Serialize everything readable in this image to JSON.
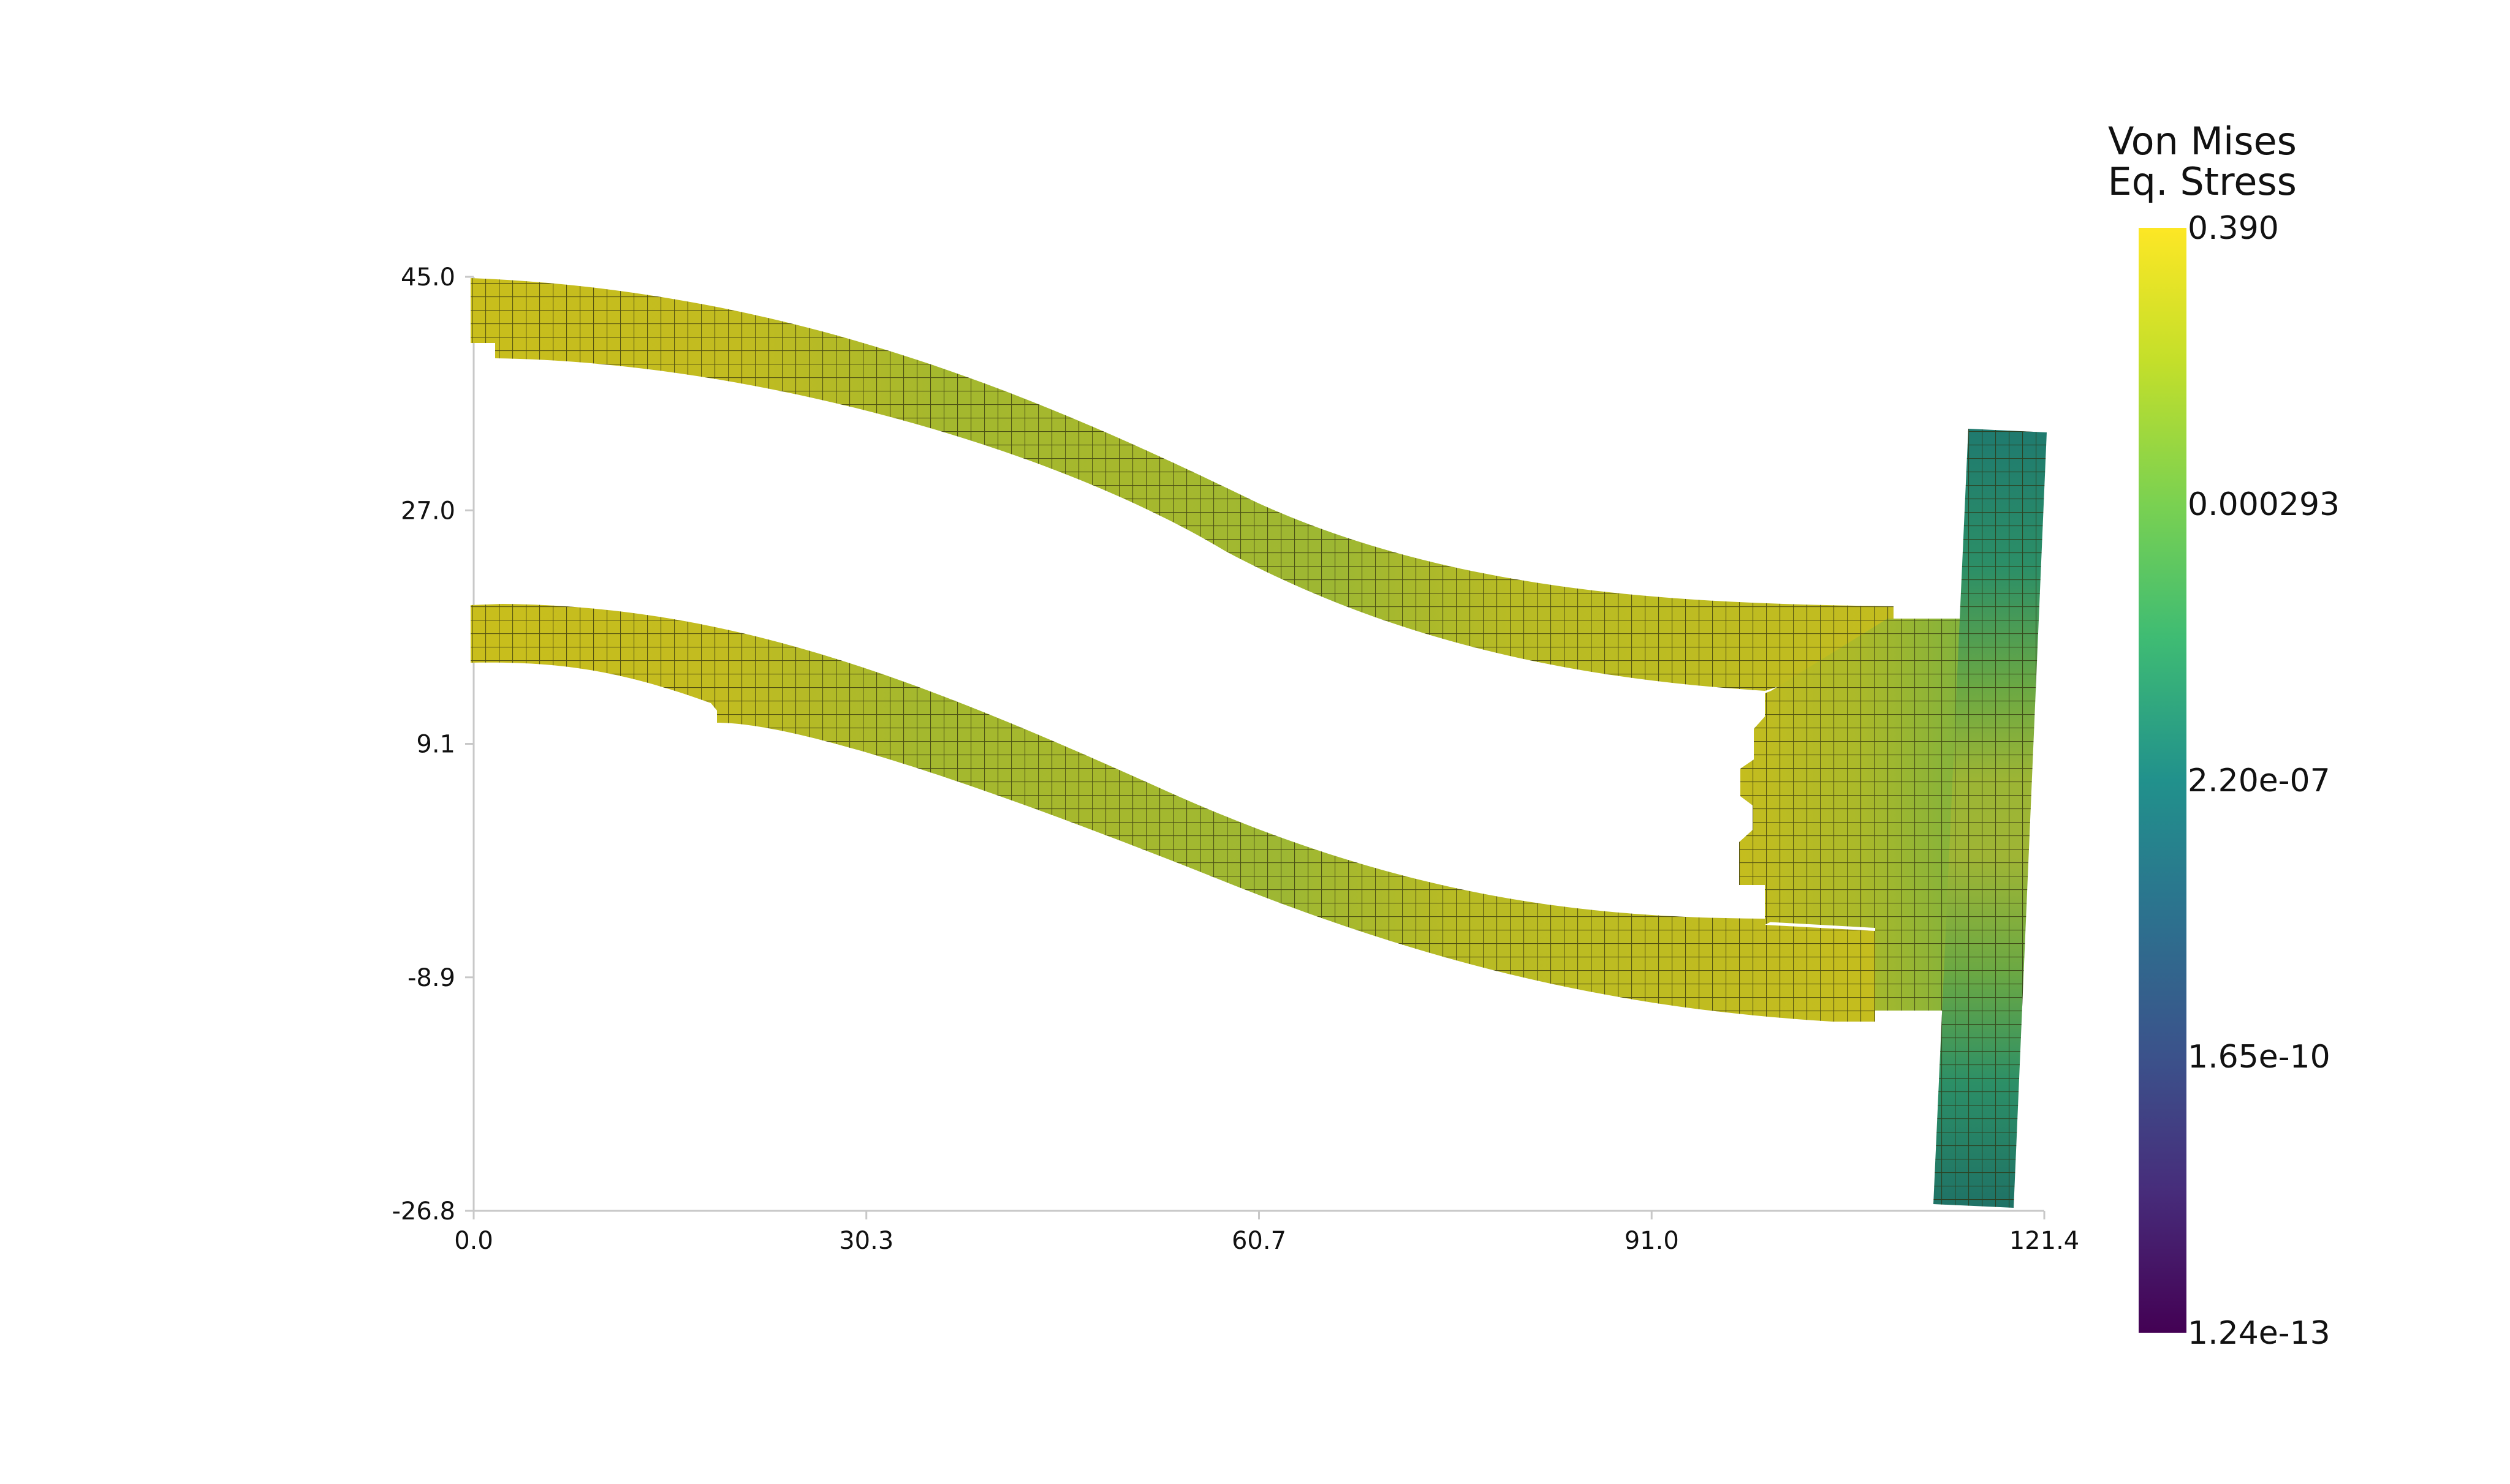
{
  "chart_data": {
    "type": "heatmap",
    "description_free": true,
    "x_ticks": [
      "0.0",
      "30.3",
      "60.7",
      "91.0",
      "121.4"
    ],
    "y_ticks": [
      "45.0",
      "27.0",
      "9.1",
      "-8.9",
      "-26.8"
    ],
    "xlim": [
      0.0,
      121.4
    ],
    "ylim": [
      -26.8,
      45.0
    ],
    "colorbar": {
      "title_line1": "Von Mises",
      "title_line2": "Eq. Stress",
      "labels": [
        "0.390",
        "0.000293",
        "2.20e-07",
        "1.65e-10",
        "1.24e-13"
      ],
      "scale": "log",
      "colormap": "viridis",
      "colors": [
        "#fde725",
        "#5ec962",
        "#21918c",
        "#3b528b",
        "#440154"
      ]
    },
    "mesh_color": "#3a3a10",
    "field_colors": {
      "high": "#c8be1e",
      "mid": "#94b83a",
      "low": "#2a7a6e"
    }
  }
}
